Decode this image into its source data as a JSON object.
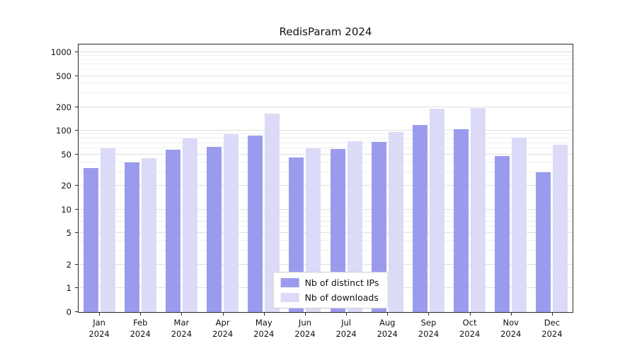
{
  "title": "RedisParam 2024",
  "chart_data": {
    "type": "bar",
    "scale": "symlog",
    "title": "RedisParam 2024",
    "xlabel": "",
    "ylabel": "",
    "categories": [
      "Jan",
      "Feb",
      "Mar",
      "Apr",
      "May",
      "Jun",
      "Jul",
      "Aug",
      "Sep",
      "Oct",
      "Nov",
      "Dec"
    ],
    "year_label": "2024",
    "series": [
      {
        "name": "Nb of distinct IPs",
        "color": "#9b9bee",
        "values": [
          34,
          40,
          58,
          62,
          88,
          46,
          59,
          72,
          118,
          105,
          48,
          30
        ]
      },
      {
        "name": "Nb of downloads",
        "color": "#dbdbf8",
        "values": [
          60,
          45,
          80,
          90,
          165,
          60,
          74,
          97,
          190,
          195,
          82,
          67
        ]
      }
    ],
    "y_ticks": [
      0,
      1,
      2,
      5,
      10,
      20,
      50,
      100,
      200,
      500,
      1000
    ],
    "ylim": [
      0,
      1200
    ],
    "grid": true,
    "legend_position": "lower center"
  }
}
